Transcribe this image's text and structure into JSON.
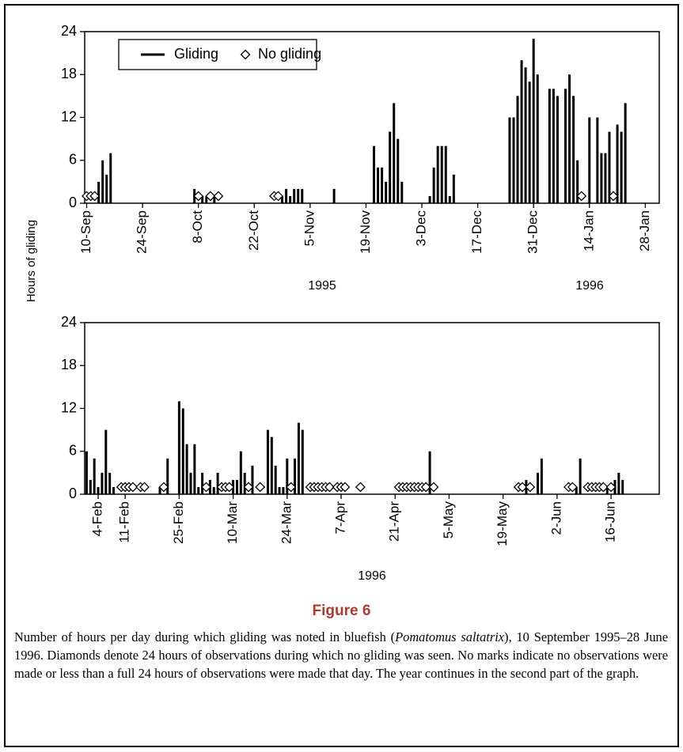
{
  "chart_data": [
    {
      "type": "bar",
      "ylabel": "Hours of gliding",
      "ylim": [
        0,
        24
      ],
      "yticks": [
        0,
        6,
        12,
        18,
        24
      ],
      "legend": "top-left",
      "year_labels": [
        "1995",
        "1996"
      ],
      "categories": [
        "10-Sep",
        null,
        null,
        null,
        null,
        null,
        null,
        null,
        null,
        null,
        null,
        null,
        null,
        null,
        "24-Sep",
        null,
        null,
        null,
        null,
        null,
        null,
        null,
        null,
        null,
        null,
        null,
        null,
        null,
        "8-Oct",
        null,
        null,
        null,
        null,
        null,
        null,
        null,
        null,
        null,
        null,
        null,
        null,
        null,
        "22-Oct",
        null,
        null,
        null,
        null,
        null,
        null,
        null,
        null,
        null,
        null,
        null,
        null,
        null,
        "5-Nov",
        null,
        null,
        null,
        null,
        null,
        null,
        null,
        null,
        null,
        null,
        null,
        null,
        null,
        "19-Nov",
        null,
        null,
        null,
        null,
        null,
        null,
        null,
        null,
        null,
        null,
        null,
        null,
        null,
        "3-Dec",
        null,
        null,
        null,
        null,
        null,
        null,
        null,
        null,
        null,
        null,
        null,
        null,
        null,
        "17-Dec",
        null,
        null,
        null,
        null,
        null,
        null,
        null,
        null,
        null,
        null,
        null,
        null,
        null,
        "31-Dec",
        null,
        null,
        null,
        null,
        null,
        null,
        null,
        null,
        null,
        null,
        null,
        null,
        null,
        "14-Jan",
        null,
        null,
        null,
        null,
        null,
        null,
        null,
        null,
        null,
        null,
        null,
        null,
        null,
        "28-Jan",
        null,
        null,
        null
      ],
      "series": [
        {
          "name": "Gliding",
          "type": "bar",
          "color": "#000000",
          "values": [
            null,
            null,
            null,
            3,
            6,
            4,
            7,
            null,
            null,
            null,
            null,
            null,
            null,
            null,
            null,
            null,
            null,
            null,
            null,
            null,
            null,
            null,
            null,
            null,
            null,
            null,
            null,
            2,
            null,
            1,
            1,
            null,
            1,
            null,
            null,
            null,
            null,
            null,
            null,
            null,
            null,
            null,
            null,
            null,
            null,
            null,
            null,
            null,
            null,
            1,
            2,
            1,
            2,
            2,
            2,
            null,
            null,
            null,
            null,
            null,
            null,
            null,
            2,
            null,
            null,
            null,
            null,
            null,
            null,
            null,
            null,
            null,
            8,
            5,
            5,
            3,
            10,
            14,
            9,
            3,
            null,
            null,
            null,
            null,
            null,
            null,
            1,
            5,
            8,
            8,
            8,
            1,
            4,
            null,
            null,
            null,
            null,
            null,
            null,
            null,
            null,
            null,
            null,
            null,
            null,
            null,
            12,
            12,
            15,
            20,
            19,
            17,
            23,
            18,
            null,
            null,
            16,
            16,
            15,
            null,
            16,
            18,
            15,
            6,
            null,
            null,
            12,
            null,
            12,
            7,
            7,
            10,
            null,
            11,
            10,
            14,
            null,
            null,
            null,
            null,
            null,
            null,
            null,
            null
          ]
        },
        {
          "name": "No gliding",
          "type": "scatter",
          "color": "#000000",
          "values": [
            1,
            1,
            1,
            null,
            null,
            null,
            null,
            null,
            null,
            null,
            null,
            null,
            null,
            null,
            null,
            null,
            null,
            null,
            null,
            null,
            null,
            null,
            null,
            null,
            null,
            null,
            null,
            null,
            1,
            null,
            null,
            1,
            null,
            1,
            null,
            null,
            null,
            null,
            null,
            null,
            null,
            null,
            null,
            null,
            null,
            null,
            null,
            1,
            1,
            null,
            null,
            null,
            null,
            null,
            null,
            null,
            null,
            null,
            null,
            null,
            null,
            null,
            null,
            null,
            null,
            null,
            null,
            null,
            null,
            null,
            null,
            null,
            null,
            null,
            null,
            null,
            null,
            null,
            null,
            null,
            null,
            null,
            null,
            null,
            null,
            null,
            null,
            null,
            null,
            null,
            null,
            null,
            null,
            null,
            null,
            null,
            null,
            null,
            null,
            null,
            null,
            null,
            null,
            null,
            null,
            null,
            null,
            null,
            null,
            null,
            null,
            null,
            null,
            null,
            null,
            null,
            null,
            null,
            null,
            null,
            null,
            null,
            null,
            null,
            1,
            null,
            null,
            null,
            null,
            null,
            null,
            null,
            1,
            null,
            null,
            null,
            null,
            null,
            null,
            null,
            null,
            null,
            null,
            null
          ]
        }
      ]
    },
    {
      "type": "bar",
      "ylim": [
        0,
        24
      ],
      "yticks": [
        0,
        6,
        12,
        18,
        24
      ],
      "year_labels": [
        "1996"
      ],
      "categories": [
        null,
        null,
        null,
        "4-Feb",
        null,
        null,
        null,
        null,
        null,
        null,
        "11-Feb",
        null,
        null,
        null,
        null,
        null,
        null,
        null,
        null,
        null,
        null,
        null,
        null,
        null,
        "25-Feb",
        null,
        null,
        null,
        null,
        null,
        null,
        null,
        null,
        null,
        null,
        null,
        null,
        null,
        "10-Mar",
        null,
        null,
        null,
        null,
        null,
        null,
        null,
        null,
        null,
        null,
        null,
        null,
        null,
        "24-Mar",
        null,
        null,
        null,
        null,
        null,
        null,
        null,
        null,
        null,
        null,
        null,
        null,
        null,
        "7-Apr",
        null,
        null,
        null,
        null,
        null,
        null,
        null,
        null,
        null,
        null,
        null,
        null,
        null,
        "21-Apr",
        null,
        null,
        null,
        null,
        null,
        null,
        null,
        null,
        null,
        null,
        null,
        null,
        null,
        "5-May",
        null,
        null,
        null,
        null,
        null,
        null,
        null,
        null,
        null,
        null,
        null,
        null,
        null,
        "19-May",
        null,
        null,
        null,
        null,
        null,
        null,
        null,
        null,
        null,
        null,
        null,
        null,
        null,
        "2-Jun",
        null,
        null,
        null,
        null,
        null,
        null,
        null,
        null,
        null,
        null,
        null,
        null,
        null,
        "16-Jun",
        null,
        null,
        null,
        null,
        null,
        null,
        null,
        null,
        null,
        null,
        null,
        null
      ],
      "series": [
        {
          "type": "bar",
          "color": "#000000",
          "values": [
            6,
            2,
            5,
            1,
            3,
            9,
            3,
            1,
            null,
            null,
            null,
            null,
            null,
            null,
            null,
            null,
            null,
            null,
            null,
            1,
            null,
            5,
            null,
            null,
            13,
            12,
            7,
            3,
            7,
            1,
            3,
            null,
            2,
            1,
            3,
            null,
            null,
            null,
            2,
            2,
            6,
            3,
            null,
            4,
            null,
            null,
            null,
            9,
            8,
            4,
            1,
            1,
            5,
            null,
            5,
            10,
            9,
            null,
            null,
            null,
            null,
            null,
            null,
            null,
            null,
            null,
            null,
            null,
            null,
            null,
            null,
            null,
            null,
            null,
            null,
            null,
            null,
            null,
            null,
            null,
            null,
            null,
            null,
            null,
            null,
            null,
            null,
            null,
            null,
            6,
            null,
            null,
            null,
            null,
            null,
            null,
            null,
            null,
            null,
            null,
            null,
            null,
            null,
            null,
            null,
            null,
            null,
            null,
            null,
            null,
            null,
            null,
            null,
            null,
            2,
            null,
            null,
            3,
            5,
            null,
            null,
            null,
            null,
            null,
            null,
            null,
            null,
            1,
            5,
            null,
            null,
            null,
            null,
            null,
            null,
            1,
            null,
            2,
            3,
            2,
            null,
            null,
            null,
            null,
            null,
            null,
            null,
            null,
            null
          ]
        },
        {
          "type": "scatter",
          "color": "#000000",
          "values": [
            null,
            null,
            null,
            null,
            null,
            null,
            null,
            null,
            null,
            1,
            1,
            1,
            1,
            null,
            1,
            1,
            null,
            null,
            null,
            null,
            1,
            null,
            null,
            null,
            null,
            null,
            null,
            null,
            null,
            null,
            null,
            1,
            null,
            null,
            null,
            1,
            1,
            1,
            null,
            null,
            null,
            null,
            1,
            null,
            null,
            1,
            null,
            null,
            null,
            null,
            null,
            null,
            null,
            1,
            null,
            null,
            null,
            null,
            1,
            1,
            1,
            1,
            1,
            1,
            null,
            1,
            1,
            1,
            null,
            null,
            null,
            1,
            null,
            null,
            null,
            null,
            null,
            null,
            null,
            null,
            null,
            1,
            1,
            1,
            1,
            1,
            1,
            1,
            1,
            null,
            1,
            null,
            null,
            null,
            null,
            null,
            null,
            null,
            null,
            null,
            null,
            null,
            null,
            null,
            null,
            null,
            null,
            null,
            null,
            null,
            null,
            null,
            1,
            1,
            null,
            1,
            null,
            null,
            null,
            null,
            null,
            null,
            null,
            null,
            null,
            1,
            1,
            null,
            null,
            null,
            1,
            1,
            1,
            1,
            1,
            null,
            1,
            null,
            null,
            null,
            null,
            null,
            null,
            null,
            null,
            null,
            null,
            null,
            null
          ]
        }
      ]
    }
  ],
  "figure": {
    "title": "Figure 6",
    "caption": [
      "Number of hours per day during which gliding was noted in bluefish (",
      "Pomatomus saltatrix",
      "), 10 September 1995–28 June 1996. Diamonds denote 24 hours of observations during which no gliding was seen. No marks indicate no observations were made or less than a full 24 hours of observations were made that day. The year continues in the second part of the graph."
    ]
  }
}
